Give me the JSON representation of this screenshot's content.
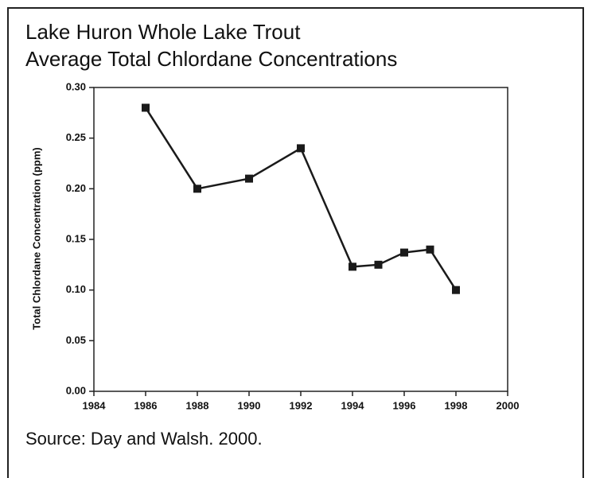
{
  "chart_data": {
    "type": "line",
    "title": "Lake Huron Whole Lake Trout",
    "subtitle": "Average Total Chlordane Concentrations",
    "y_label": "Total Chlordane Concentration (ppm)",
    "source": "Source: Day and Walsh.  2000.",
    "x": [
      1986,
      1988,
      1990,
      1992,
      1994,
      1995,
      1996,
      1997,
      1998
    ],
    "series": [
      {
        "name": "Average Total Chlordane",
        "color": "#1a1a1a",
        "values": [
          0.28,
          0.2,
          0.21,
          0.24,
          0.123,
          0.125,
          0.137,
          0.14,
          0.1
        ]
      }
    ],
    "xlim": [
      1984,
      2000
    ],
    "xticks": [
      1984,
      1986,
      1988,
      1990,
      1992,
      1994,
      1996,
      1998,
      2000
    ],
    "ylim": [
      0,
      0.3
    ],
    "yticks": [
      {
        "value": 0,
        "label": "0.00"
      },
      {
        "value": 0.05,
        "label": "0.05"
      },
      {
        "value": 0.1,
        "label": "0.10"
      },
      {
        "value": 0.15,
        "label": "0.15"
      },
      {
        "value": 0.2,
        "label": "0.20"
      },
      {
        "value": 0.25,
        "label": "0.25"
      },
      {
        "value": 0.3,
        "label": "0.30"
      }
    ],
    "grid": false
  }
}
